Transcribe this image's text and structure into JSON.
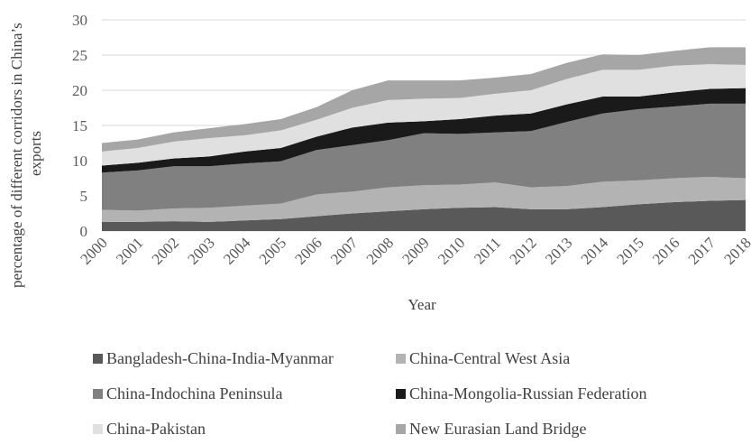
{
  "chart_data": {
    "type": "area",
    "stacked": true,
    "title": "",
    "xlabel": "Year",
    "ylabel": "percentage of different corridors in China’s exports",
    "ylim": [
      0,
      30
    ],
    "yticks": [
      0,
      5,
      10,
      15,
      20,
      25,
      30
    ],
    "grid": true,
    "legend_position": "bottom",
    "x": [
      "2000",
      "2001",
      "2002",
      "2003",
      "2004",
      "2005",
      "2006",
      "2007",
      "2008",
      "2009",
      "2010",
      "2011",
      "2012",
      "2013",
      "2014",
      "2015",
      "2016",
      "2017",
      "2018"
    ],
    "series": [
      {
        "name": "Bangladesh-China-India-Myanmar",
        "color": "#595959",
        "values": [
          1.3,
          1.3,
          1.4,
          1.3,
          1.5,
          1.7,
          2.1,
          2.5,
          2.8,
          3.1,
          3.3,
          3.4,
          3.1,
          3.1,
          3.4,
          3.8,
          4.1,
          4.3,
          4.4
        ]
      },
      {
        "name": "China-Central West Asia",
        "color": "#b3b3b3",
        "values": [
          1.7,
          1.6,
          1.8,
          2.0,
          2.1,
          2.2,
          3.1,
          3.1,
          3.4,
          3.4,
          3.3,
          3.5,
          3.1,
          3.3,
          3.6,
          3.4,
          3.4,
          3.4,
          3.1
        ]
      },
      {
        "name": "China-Indochina Peninsula",
        "color": "#808080",
        "values": [
          5.3,
          5.7,
          6.0,
          5.9,
          6.0,
          6.0,
          6.3,
          6.6,
          6.7,
          7.4,
          7.2,
          7.1,
          8.0,
          9.1,
          9.7,
          10.1,
          10.2,
          10.4,
          10.6
        ]
      },
      {
        "name": "China-Mongolia-Russian Federation",
        "color": "#1a1a1a",
        "values": [
          1.0,
          1.1,
          1.1,
          1.4,
          1.7,
          1.9,
          1.9,
          2.5,
          2.5,
          1.7,
          2.1,
          2.4,
          2.5,
          2.5,
          2.4,
          1.8,
          2.0,
          2.1,
          2.2
        ]
      },
      {
        "name": "China-Pakistan",
        "color": "#e0e0e0",
        "values": [
          2.0,
          2.1,
          2.4,
          2.6,
          2.3,
          2.5,
          2.4,
          2.8,
          3.2,
          3.2,
          3.0,
          3.1,
          3.3,
          3.6,
          3.8,
          3.8,
          3.8,
          3.5,
          3.3
        ]
      },
      {
        "name": "New Eurasian Land Bridge",
        "color": "#a6a6a6",
        "values": [
          1.2,
          1.2,
          1.3,
          1.4,
          1.6,
          1.6,
          1.8,
          2.5,
          2.8,
          2.6,
          2.5,
          2.3,
          2.3,
          2.3,
          2.2,
          2.1,
          2.1,
          2.4,
          2.5
        ]
      }
    ]
  }
}
